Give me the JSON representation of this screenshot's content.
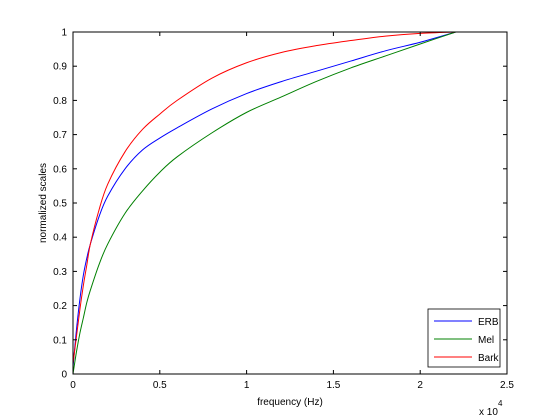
{
  "chart_data": {
    "type": "line",
    "xlabel": "frequency (Hz)",
    "ylabel": "normalized scales",
    "x_exponent_label": "x 10",
    "x_exponent_power": "4",
    "xlim": [
      0,
      25000
    ],
    "ylim": [
      0,
      1
    ],
    "x_ticks": [
      0,
      5000,
      10000,
      15000,
      20000,
      25000
    ],
    "x_tick_labels": [
      "0",
      "0.5",
      "1",
      "1.5",
      "2",
      "2.5"
    ],
    "y_ticks": [
      0,
      0.1,
      0.2,
      0.3,
      0.4,
      0.5,
      0.6,
      0.7,
      0.8,
      0.9,
      1
    ],
    "y_tick_labels": [
      "0",
      "0.1",
      "0.2",
      "0.3",
      "0.4",
      "0.5",
      "0.6",
      "0.7",
      "0.8",
      "0.9",
      "1"
    ],
    "grid": false,
    "legend_position": "bottom-right",
    "series": [
      {
        "name": "ERB",
        "color": "#0000ff",
        "x": [
          0,
          200,
          400,
          600,
          800,
          1000,
          1500,
          2000,
          3000,
          4000,
          5000,
          6000,
          8000,
          10000,
          12000,
          14000,
          16000,
          18000,
          20000,
          22050
        ],
        "y": [
          0.02,
          0.13,
          0.22,
          0.29,
          0.34,
          0.38,
          0.46,
          0.52,
          0.6,
          0.655,
          0.69,
          0.72,
          0.775,
          0.82,
          0.855,
          0.885,
          0.915,
          0.945,
          0.97,
          1.0
        ]
      },
      {
        "name": "Mel",
        "color": "#008000",
        "x": [
          0,
          200,
          400,
          600,
          800,
          1000,
          1500,
          2000,
          3000,
          4000,
          5000,
          6000,
          8000,
          10000,
          12000,
          14000,
          16000,
          18000,
          20000,
          22050
        ],
        "y": [
          0.0,
          0.065,
          0.12,
          0.165,
          0.21,
          0.245,
          0.32,
          0.38,
          0.47,
          0.535,
          0.59,
          0.635,
          0.705,
          0.765,
          0.81,
          0.855,
          0.895,
          0.93,
          0.965,
          1.0
        ]
      },
      {
        "name": "Bark",
        "color": "#ff0000",
        "x": [
          0,
          200,
          400,
          600,
          800,
          1000,
          1500,
          2000,
          3000,
          4000,
          5000,
          6000,
          8000,
          10000,
          12000,
          14000,
          16000,
          18000,
          20000,
          22050
        ],
        "y": [
          0.03,
          0.11,
          0.19,
          0.26,
          0.32,
          0.38,
          0.48,
          0.555,
          0.65,
          0.715,
          0.76,
          0.8,
          0.865,
          0.91,
          0.94,
          0.96,
          0.975,
          0.988,
          0.996,
          1.0
        ]
      }
    ]
  }
}
